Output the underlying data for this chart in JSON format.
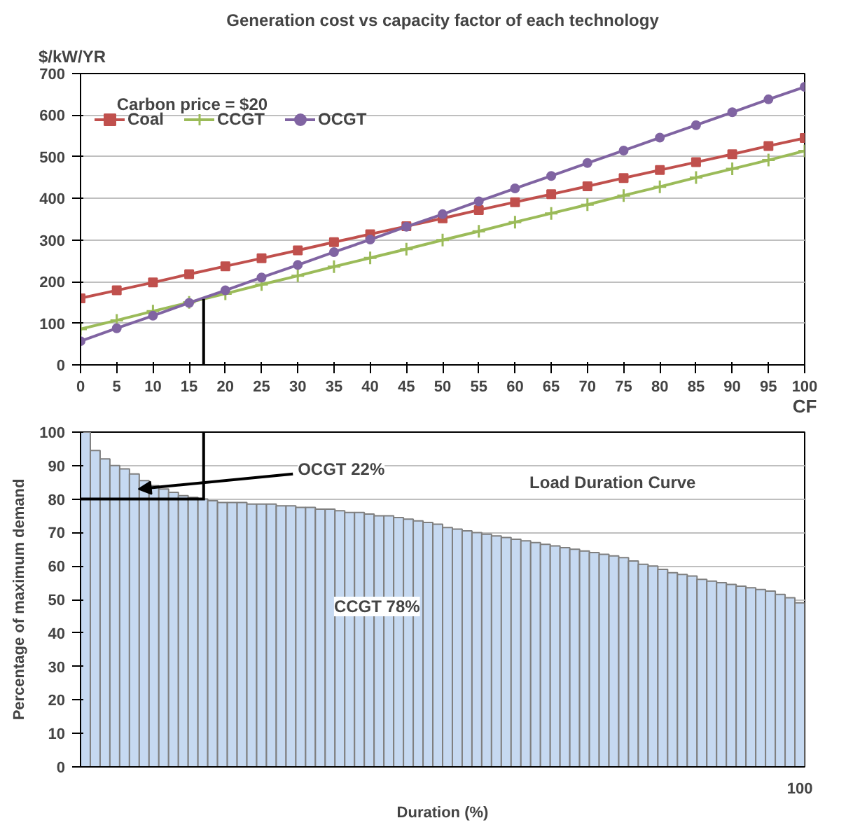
{
  "chart_data": [
    {
      "type": "line",
      "title": "Generation cost vs capacity factor of each technology",
      "ylabel": "$/kW/YR",
      "xlabel": "CF",
      "x": [
        0,
        5,
        10,
        15,
        20,
        25,
        30,
        35,
        40,
        45,
        50,
        55,
        60,
        65,
        70,
        75,
        80,
        85,
        90,
        95,
        100
      ],
      "series": [
        {
          "name": "Coal",
          "color": "#c0504d",
          "marker": "square",
          "values": [
            160,
            179,
            198,
            218,
            237,
            256,
            275,
            295,
            314,
            333,
            352,
            372,
            391,
            410,
            429,
            449,
            468,
            487,
            506,
            526,
            545
          ]
        },
        {
          "name": "CCGT",
          "color": "#9bbb59",
          "marker": "cross",
          "values": [
            86,
            107,
            129,
            150,
            171,
            193,
            214,
            236,
            257,
            278,
            300,
            321,
            343,
            364,
            385,
            407,
            428,
            450,
            471,
            492,
            514
          ]
        },
        {
          "name": "OCGT",
          "color": "#8064a2",
          "marker": "circle",
          "values": [
            57,
            88,
            118,
            149,
            179,
            210,
            240,
            271,
            301,
            332,
            362,
            393,
            424,
            454,
            485,
            515,
            546,
            576,
            607,
            638,
            668
          ]
        }
      ],
      "xlim": [
        0,
        100
      ],
      "xticks": [
        0,
        5,
        10,
        15,
        20,
        25,
        30,
        35,
        40,
        45,
        50,
        55,
        60,
        65,
        70,
        75,
        80,
        85,
        90,
        95,
        100
      ],
      "ylim": [
        0,
        700
      ],
      "yticks": [
        0,
        100,
        200,
        300,
        400,
        500,
        600,
        700
      ],
      "grid": "y",
      "legend": "top left",
      "annotations": [
        "Carbon price = $20"
      ],
      "ref_lines": [
        {
          "axis": "x",
          "value": 17,
          "color": "#000000"
        }
      ]
    },
    {
      "type": "bar",
      "xlabel": "Duration (%)",
      "ylabel": "Percentage of maximum demand",
      "color": "#c6d9f1",
      "categories": [
        null,
        null,
        null,
        null,
        null,
        null,
        null,
        null,
        null,
        null,
        null,
        null,
        null,
        null,
        null,
        null,
        null,
        null,
        null,
        null,
        null,
        null,
        null,
        null,
        null,
        null,
        null,
        null,
        null,
        null,
        null,
        null,
        null,
        null,
        null,
        null,
        null,
        null,
        null,
        null,
        null,
        null,
        null,
        null,
        null,
        null,
        null,
        null,
        null,
        null,
        null,
        null,
        null,
        null,
        null,
        null,
        null,
        null,
        null,
        null,
        null,
        null,
        null,
        null,
        null,
        null,
        null,
        null,
        null,
        null,
        null,
        null,
        null,
        "100"
      ],
      "values": [
        100,
        94.5,
        92,
        90,
        89,
        87.5,
        85.5,
        84,
        83,
        82,
        81,
        80.5,
        80,
        79.5,
        79,
        79,
        79,
        78.5,
        78.5,
        78.5,
        78,
        78,
        77.5,
        77.5,
        77,
        77,
        76.5,
        76,
        76,
        75.5,
        75,
        75,
        74.5,
        74,
        73.5,
        73,
        72.5,
        71.5,
        71,
        70.5,
        70,
        69.5,
        69,
        68.5,
        68,
        67.5,
        67,
        66.5,
        66,
        65.5,
        65,
        64.5,
        64,
        63.5,
        63,
        62.5,
        61.5,
        60.5,
        60,
        59,
        58,
        57.5,
        57,
        56,
        55.5,
        55,
        54.5,
        54,
        53.5,
        53,
        52.5,
        51.5,
        50.5,
        49
      ],
      "ylim": [
        0,
        100
      ],
      "yticks": [
        0,
        10,
        20,
        30,
        40,
        50,
        60,
        70,
        80,
        90,
        100
      ],
      "grid": "y",
      "annotations": [
        "OCGT 22%",
        "Load Duration Curve",
        "CCGT 78%"
      ],
      "ref_lines": [
        {
          "axis": "y",
          "value": 80,
          "color": "#000000"
        }
      ]
    }
  ]
}
